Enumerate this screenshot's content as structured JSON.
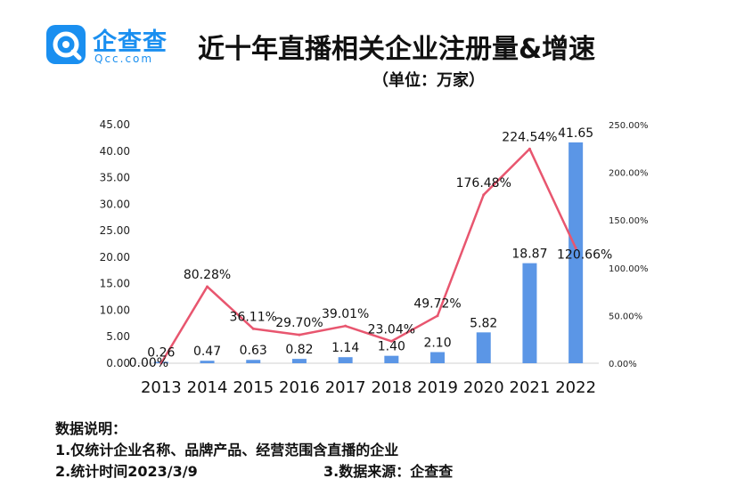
{
  "brand": {
    "name": "企查查",
    "domain": "Qcc.com",
    "accent": "#1a8ff0"
  },
  "header": {
    "title": "近十年直播相关企业注册量&增速",
    "unit": "（单位：万家）"
  },
  "chart_data": {
    "type": "bar",
    "categories": [
      "2013",
      "2014",
      "2015",
      "2016",
      "2017",
      "2018",
      "2019",
      "2020",
      "2021",
      "2022"
    ],
    "series": [
      {
        "type": "bar",
        "axis": "left",
        "color": "#5b96e6",
        "values": [
          0.26,
          0.47,
          0.63,
          0.82,
          1.14,
          1.4,
          2.1,
          5.82,
          18.87,
          41.65
        ],
        "labels": [
          "0.26",
          "0.47",
          "0.63",
          "0.82",
          "1.14",
          "1.40",
          "2.10",
          "5.82",
          "18.87",
          "41.65"
        ]
      },
      {
        "type": "line",
        "axis": "right",
        "color": "#e8566f",
        "values": [
          0.0,
          80.28,
          36.11,
          29.7,
          39.01,
          23.04,
          49.72,
          176.48,
          224.54,
          120.66
        ],
        "labels": [
          "0.00%",
          "80.28%",
          "36.11%",
          "29.70%",
          "39.01%",
          "23.04%",
          "49.72%",
          "176.48%",
          "224.54%",
          "120.66%"
        ]
      }
    ],
    "ylim": [
      0,
      45
    ],
    "yticks": [
      "0.00",
      "5.00",
      "10.00",
      "15.00",
      "20.00",
      "25.00",
      "30.00",
      "35.00",
      "40.00",
      "45.00"
    ],
    "y2lim": [
      0,
      250
    ],
    "y2ticks": [
      "0.00%",
      "50.00%",
      "100.00%",
      "150.00%",
      "200.00%",
      "250.00%"
    ],
    "legend": "none",
    "grid": false
  },
  "notes": {
    "heading": "数据说明：",
    "line1": "1.仅统计企业名称、品牌产品、经营范围含直播的企业",
    "line2": "2.统计时间2023/3/9",
    "source": "3.数据来源：企查查"
  }
}
